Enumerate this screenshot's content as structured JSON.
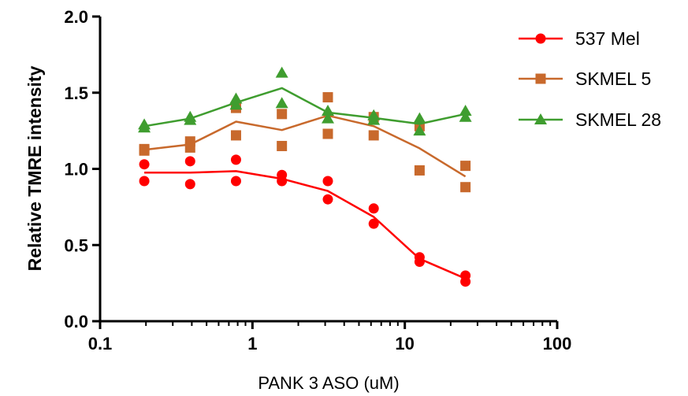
{
  "chart_data": {
    "type": "scatter",
    "xlabel": "PANK 3 ASO (uM)",
    "ylabel": "Relative TMRE intensity",
    "xscale": "log",
    "xlim": [
      0.1,
      100
    ],
    "ylim": [
      0,
      2.0
    ],
    "x_ticks": [
      0.1,
      1,
      10,
      100
    ],
    "x_tick_labels": [
      "0.1",
      "1",
      "10",
      "100"
    ],
    "y_ticks": [
      0,
      0.5,
      1.0,
      1.5,
      2.0
    ],
    "y_tick_labels": [
      "0.0",
      "0.5",
      "1.0",
      "1.5",
      "2.0"
    ],
    "grid": false,
    "legend_position": "top-right",
    "x": [
      0.195,
      0.39,
      0.78,
      1.56,
      3.125,
      6.25,
      12.5,
      25
    ],
    "series": [
      {
        "name": "537 Mel",
        "color": "#ff0000",
        "marker": "circle",
        "points_y": [
          [
            1.03,
            0.92
          ],
          [
            1.05,
            0.9
          ],
          [
            1.06,
            0.92
          ],
          [
            0.96,
            0.92
          ],
          [
            0.92,
            0.8
          ],
          [
            0.74,
            0.64
          ],
          [
            0.42,
            0.39
          ],
          [
            0.3,
            0.26
          ]
        ],
        "fit_y": [
          0.975,
          0.975,
          0.985,
          0.935,
          0.855,
          0.685,
          0.41,
          0.28
        ]
      },
      {
        "name": "SKMEL 5",
        "color": "#c8692c",
        "marker": "square",
        "points_y": [
          [
            1.13,
            1.12
          ],
          [
            1.18,
            1.14
          ],
          [
            1.4,
            1.22
          ],
          [
            1.36,
            1.15
          ],
          [
            1.47,
            1.23
          ],
          [
            1.34,
            1.22
          ],
          [
            1.28,
            0.99
          ],
          [
            1.02,
            0.88
          ]
        ],
        "fit_y": [
          1.125,
          1.16,
          1.31,
          1.255,
          1.35,
          1.28,
          1.135,
          0.95
        ]
      },
      {
        "name": "SKMEL 28",
        "color": "#3f9d2f",
        "marker": "triangle",
        "points_y": [
          [
            1.29,
            1.27
          ],
          [
            1.34,
            1.32
          ],
          [
            1.46,
            1.42
          ],
          [
            1.63,
            1.43
          ],
          [
            1.38,
            1.33
          ],
          [
            1.35,
            1.32
          ],
          [
            1.33,
            1.25
          ],
          [
            1.38,
            1.34
          ]
        ],
        "fit_y": [
          1.28,
          1.33,
          1.435,
          1.53,
          1.37,
          1.335,
          1.295,
          1.36
        ]
      }
    ]
  }
}
